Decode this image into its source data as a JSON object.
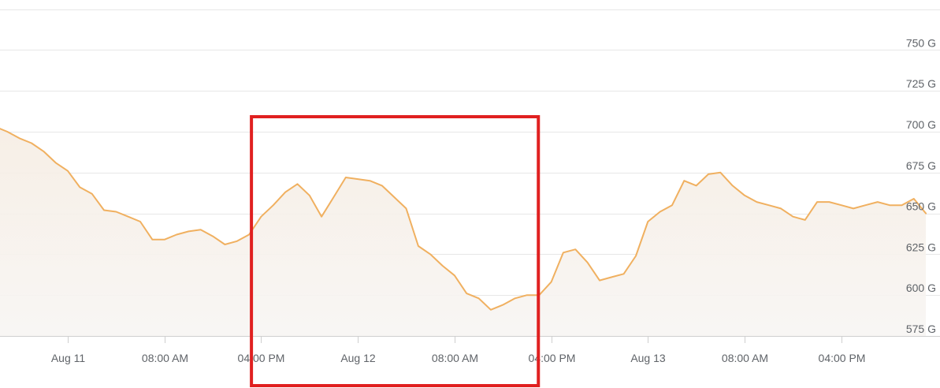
{
  "chart_data": {
    "type": "area",
    "title": "",
    "xlabel": "",
    "ylabel": "",
    "x_ticks": [
      "Aug 11",
      "08:00 AM",
      "04:00 PM",
      "Aug 12",
      "08:00 AM",
      "04:00 PM",
      "Aug 13",
      "08:00 AM",
      "04:00 PM"
    ],
    "y_ticks": [
      "575 G",
      "600 G",
      "625 G",
      "650 G",
      "675 G",
      "700 G",
      "725 G",
      "750 G"
    ],
    "ylim": [
      575,
      775
    ],
    "xlim": [
      "Aug 10 18:00",
      "Aug 13 23:00"
    ],
    "grid": true,
    "series": [
      {
        "color": "#f0b060",
        "points": [
          [
            "Aug 10 18:00",
            703
          ],
          [
            "Aug 10 19:00",
            700
          ],
          [
            "Aug 10 20:00",
            696
          ],
          [
            "Aug 10 21:00",
            693
          ],
          [
            "Aug 10 22:00",
            688
          ],
          [
            "Aug 10 23:00",
            681
          ],
          [
            "Aug 11 00:00",
            676
          ],
          [
            "Aug 11 01:00",
            666
          ],
          [
            "Aug 11 02:00",
            662
          ],
          [
            "Aug 11 03:00",
            652
          ],
          [
            "Aug 11 04:00",
            651
          ],
          [
            "Aug 11 05:00",
            648
          ],
          [
            "Aug 11 06:00",
            645
          ],
          [
            "Aug 11 07:00",
            634
          ],
          [
            "Aug 11 08:00",
            634
          ],
          [
            "Aug 11 09:00",
            637
          ],
          [
            "Aug 11 10:00",
            639
          ],
          [
            "Aug 11 11:00",
            640
          ],
          [
            "Aug 11 12:00",
            636
          ],
          [
            "Aug 11 13:00",
            631
          ],
          [
            "Aug 11 14:00",
            633
          ],
          [
            "Aug 11 15:00",
            637
          ],
          [
            "Aug 11 16:00",
            648
          ],
          [
            "Aug 11 17:00",
            655
          ],
          [
            "Aug 11 18:00",
            663
          ],
          [
            "Aug 11 19:00",
            668
          ],
          [
            "Aug 11 20:00",
            661
          ],
          [
            "Aug 11 21:00",
            648
          ],
          [
            "Aug 11 22:00",
            660
          ],
          [
            "Aug 11 23:00",
            672
          ],
          [
            "Aug 12 00:00",
            671
          ],
          [
            "Aug 12 01:00",
            670
          ],
          [
            "Aug 12 02:00",
            667
          ],
          [
            "Aug 12 03:00",
            660
          ],
          [
            "Aug 12 04:00",
            653
          ],
          [
            "Aug 12 05:00",
            630
          ],
          [
            "Aug 12 06:00",
            625
          ],
          [
            "Aug 12 07:00",
            618
          ],
          [
            "Aug 12 08:00",
            612
          ],
          [
            "Aug 12 09:00",
            601
          ],
          [
            "Aug 12 10:00",
            598
          ],
          [
            "Aug 12 11:00",
            591
          ],
          [
            "Aug 12 12:00",
            594
          ],
          [
            "Aug 12 13:00",
            598
          ],
          [
            "Aug 12 14:00",
            600
          ],
          [
            "Aug 12 15:00",
            600
          ],
          [
            "Aug 12 16:00",
            608
          ],
          [
            "Aug 12 17:00",
            626
          ],
          [
            "Aug 12 18:00",
            628
          ],
          [
            "Aug 12 19:00",
            620
          ],
          [
            "Aug 12 20:00",
            609
          ],
          [
            "Aug 12 21:00",
            611
          ],
          [
            "Aug 12 22:00",
            613
          ],
          [
            "Aug 12 23:00",
            624
          ],
          [
            "Aug 13 00:00",
            645
          ],
          [
            "Aug 13 01:00",
            651
          ],
          [
            "Aug 13 02:00",
            655
          ],
          [
            "Aug 13 03:00",
            670
          ],
          [
            "Aug 13 04:00",
            667
          ],
          [
            "Aug 13 05:00",
            674
          ],
          [
            "Aug 13 06:00",
            675
          ],
          [
            "Aug 13 07:00",
            667
          ],
          [
            "Aug 13 08:00",
            661
          ],
          [
            "Aug 13 09:00",
            657
          ],
          [
            "Aug 13 10:00",
            655
          ],
          [
            "Aug 13 11:00",
            653
          ],
          [
            "Aug 13 12:00",
            648
          ],
          [
            "Aug 13 13:00",
            646
          ],
          [
            "Aug 13 14:00",
            657
          ],
          [
            "Aug 13 15:00",
            657
          ],
          [
            "Aug 13 16:00",
            655
          ],
          [
            "Aug 13 17:00",
            653
          ],
          [
            "Aug 13 18:00",
            655
          ],
          [
            "Aug 13 19:00",
            657
          ],
          [
            "Aug 13 20:00",
            655
          ],
          [
            "Aug 13 21:00",
            655
          ],
          [
            "Aug 13 22:00",
            659
          ],
          [
            "Aug 13 23:00",
            650
          ]
        ]
      }
    ],
    "highlight_box": {
      "x_range": [
        "Aug 11 15:00",
        "Aug 12 15:00"
      ],
      "color": "#e02020"
    }
  }
}
